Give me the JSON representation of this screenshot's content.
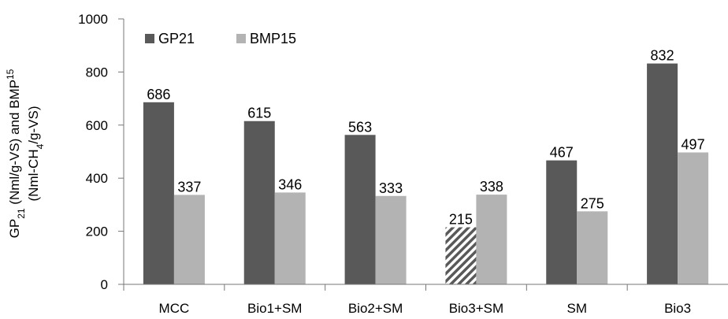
{
  "chart_data": {
    "type": "bar",
    "categories": [
      "MCC",
      "Bio1+SM",
      "Bio2+SM",
      "Bio3+SM",
      "SM",
      "Bio3"
    ],
    "series": [
      {
        "name": "GP21",
        "values": [
          686,
          615,
          563,
          215,
          467,
          832
        ],
        "color": "#595959"
      },
      {
        "name": "BMP15",
        "values": [
          337,
          346,
          333,
          338,
          275,
          497
        ],
        "color": "#b3b3b3"
      }
    ],
    "hatched_points": [
      {
        "series": 0,
        "category": "Bio3+SM"
      }
    ],
    "ylim": [
      0,
      1000
    ],
    "yticks": [
      0,
      200,
      400,
      600,
      800,
      1000
    ],
    "ylabel": {
      "line1": {
        "a": "GP",
        "a_sub": "21",
        "b": " (Nml/g-VS) and BMP",
        "b_sub": "15"
      },
      "line2": {
        "a": "(Nml-CH",
        "a_sub": "4",
        "b": "/g-VS)"
      }
    },
    "legend_position": "top-left",
    "grid": false
  }
}
